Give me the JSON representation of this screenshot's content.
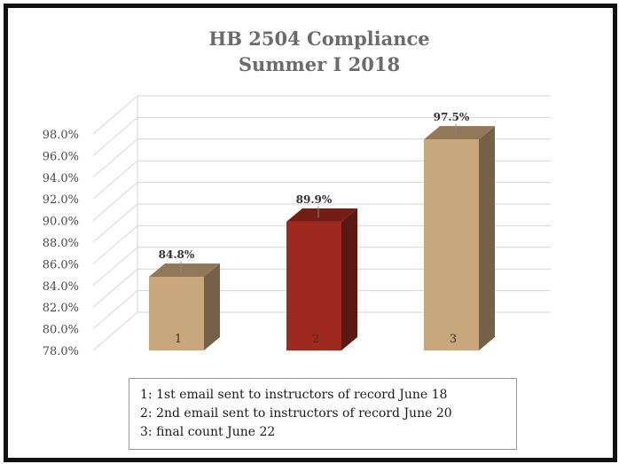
{
  "chart_data": {
    "type": "bar",
    "title": [
      "HB 2504 Compliance",
      "Summer I 2018"
    ],
    "categories": [
      "1",
      "2",
      "3"
    ],
    "values": [
      84.8,
      89.9,
      97.5
    ],
    "data_labels": [
      "84.8%",
      "89.9%",
      "97.5%"
    ],
    "ylim": [
      78.0,
      98.0
    ],
    "y_ticks": [
      "78.0%",
      "80.0%",
      "82.0%",
      "84.0%",
      "86.0%",
      "88.0%",
      "90.0%",
      "92.0%",
      "94.0%",
      "96.0%",
      "98.0%"
    ],
    "grid": true,
    "style": "3d-column",
    "colors": {
      "bar_default": "#c9a77c",
      "bar_highlight": "#9e2a1f"
    },
    "highlight_index": 1
  },
  "legend": {
    "lines": [
      "1: 1st email sent to instructors of record June 18",
      "2: 2nd email sent to instructors of record June 20",
      "3: final count June 22"
    ]
  }
}
